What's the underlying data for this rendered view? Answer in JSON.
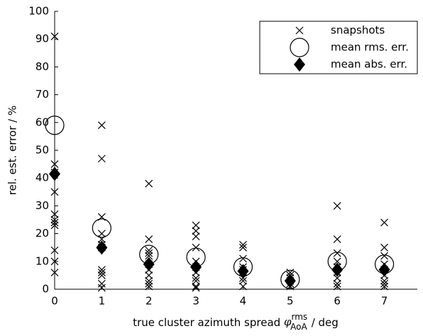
{
  "chart_data": {
    "type": "scatter",
    "xlabel": {
      "text": "true cluster azimuth spread",
      "symbol": "φ",
      "sup": "rms",
      "sub": "AoA",
      "unit": "/ deg"
    },
    "ylabel": "rel. est. error / %",
    "xlim": [
      0,
      7.7
    ],
    "ylim": [
      0,
      100
    ],
    "xticks": [
      0,
      1,
      2,
      3,
      4,
      5,
      6,
      7
    ],
    "yticks": [
      0,
      10,
      20,
      30,
      40,
      50,
      60,
      70,
      80,
      90,
      100
    ],
    "legend": "upper right",
    "series": [
      {
        "name": "snapshots",
        "marker": "x",
        "color": "#000000",
        "x": [
          0,
          0,
          0,
          0,
          0,
          0,
          0,
          0,
          0,
          0,
          0,
          1,
          1,
          1,
          1,
          1,
          1,
          1,
          1,
          1,
          1,
          1,
          1,
          2,
          2,
          2,
          2,
          2,
          2,
          2,
          2,
          2,
          2,
          2,
          3,
          3,
          3,
          3,
          3,
          3,
          3,
          3,
          3,
          3,
          3,
          4,
          4,
          4,
          4,
          4,
          4,
          4,
          4,
          4,
          5,
          5,
          5,
          5,
          5,
          5,
          6,
          6,
          6,
          6,
          6,
          6,
          6,
          6,
          6,
          7,
          7,
          7,
          7,
          7,
          7,
          7,
          7,
          7
        ],
        "values": [
          91,
          45,
          42,
          35,
          27,
          25,
          24,
          23,
          14,
          10,
          6,
          59,
          47,
          26,
          20,
          18,
          16,
          15,
          7,
          6,
          5,
          2,
          0.5,
          38,
          18,
          14,
          13,
          12,
          9,
          7,
          5,
          3,
          2,
          1,
          23,
          21,
          19,
          15,
          10,
          8,
          6,
          4,
          3,
          1,
          0.5,
          16,
          15,
          11,
          8,
          7,
          6,
          4,
          3,
          1,
          6,
          5,
          4,
          3,
          2,
          1,
          30,
          18,
          13,
          10,
          8,
          6,
          4,
          2,
          1,
          24,
          15,
          12,
          9,
          7,
          5,
          3,
          2,
          1
        ]
      },
      {
        "name": "mean rms. err.",
        "marker": "circle",
        "color": "#000000",
        "x": [
          0,
          1,
          2,
          3,
          4,
          5,
          6,
          7
        ],
        "values": [
          59,
          22,
          12.5,
          11.5,
          8,
          3.5,
          10,
          9
        ]
      },
      {
        "name": "mean abs. err.",
        "marker": "diamond",
        "color": "#000000",
        "x": [
          0,
          1,
          2,
          3,
          4,
          5,
          6,
          7
        ],
        "values": [
          41.5,
          15,
          9,
          8,
          6.5,
          3,
          7,
          7
        ]
      }
    ]
  }
}
